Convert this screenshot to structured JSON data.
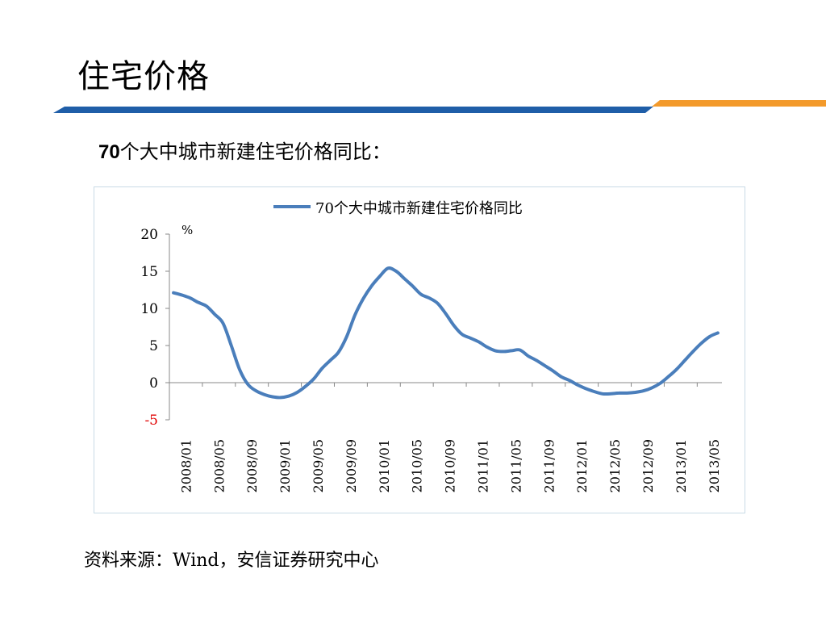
{
  "slide": {
    "title": "住宅价格",
    "subtitle_num": "70",
    "subtitle_text": "个大中城市新建住宅价格同比：",
    "source": "资料来源：Wind，安信证券研究中心"
  },
  "colors": {
    "series": "#4a7ebb",
    "negative_tick": "#e00000",
    "header_blue": "#1f5ea8",
    "header_orange": "#f39a2b"
  },
  "chart_data": {
    "type": "line",
    "title": "",
    "xlabel": "",
    "ylabel": "%",
    "ylim": [
      -5,
      20
    ],
    "yticks": [
      20,
      15,
      10,
      5,
      0,
      -5
    ],
    "x_tick_labels": [
      "2008/01",
      "2008/05",
      "2008/09",
      "2009/01",
      "2009/05",
      "2009/09",
      "2010/01",
      "2010/05",
      "2010/09",
      "2011/01",
      "2011/05",
      "2011/09",
      "2012/01",
      "2012/05",
      "2012/09",
      "2013/01",
      "2013/05"
    ],
    "legend": "top-center",
    "grid": false,
    "series": [
      {
        "name": "70个大中城市新建住宅价格同比",
        "x": [
          "2008/01",
          "2008/02",
          "2008/03",
          "2008/04",
          "2008/05",
          "2008/06",
          "2008/07",
          "2008/08",
          "2008/09",
          "2008/10",
          "2008/11",
          "2008/12",
          "2009/01",
          "2009/02",
          "2009/03",
          "2009/04",
          "2009/05",
          "2009/06",
          "2009/07",
          "2009/08",
          "2009/09",
          "2009/10",
          "2009/11",
          "2009/12",
          "2010/01",
          "2010/02",
          "2010/03",
          "2010/04",
          "2010/05",
          "2010/06",
          "2010/07",
          "2010/08",
          "2010/09",
          "2010/10",
          "2010/11",
          "2010/12",
          "2011/01",
          "2011/02",
          "2011/03",
          "2011/04",
          "2011/05",
          "2011/06",
          "2011/07",
          "2011/08",
          "2011/09",
          "2011/10",
          "2011/11",
          "2011/12",
          "2012/01",
          "2012/02",
          "2012/03",
          "2012/04",
          "2012/05",
          "2012/06",
          "2012/07",
          "2012/08",
          "2012/09",
          "2012/10",
          "2012/11",
          "2012/12",
          "2013/01",
          "2013/02",
          "2013/03",
          "2013/04",
          "2013/05",
          "2013/06",
          "2013/07"
        ],
        "values": [
          12.1,
          11.8,
          11.4,
          10.8,
          10.3,
          9.2,
          8.0,
          5.0,
          1.8,
          -0.2,
          -1.1,
          -1.6,
          -1.9,
          -2.0,
          -1.8,
          -1.3,
          -0.5,
          0.5,
          1.9,
          3.0,
          4.1,
          6.2,
          9.1,
          11.3,
          13.0,
          14.3,
          15.4,
          15.0,
          14.0,
          13.0,
          11.9,
          11.4,
          10.7,
          9.3,
          7.7,
          6.5,
          6.0,
          5.5,
          4.8,
          4.3,
          4.2,
          4.3,
          4.4,
          3.6,
          3.0,
          2.3,
          1.6,
          0.8,
          0.3,
          -0.3,
          -0.8,
          -1.2,
          -1.5,
          -1.5,
          -1.4,
          -1.4,
          -1.3,
          -1.1,
          -0.7,
          -0.1,
          0.8,
          1.8,
          3.0,
          4.2,
          5.3,
          6.2,
          6.7
        ]
      }
    ]
  }
}
